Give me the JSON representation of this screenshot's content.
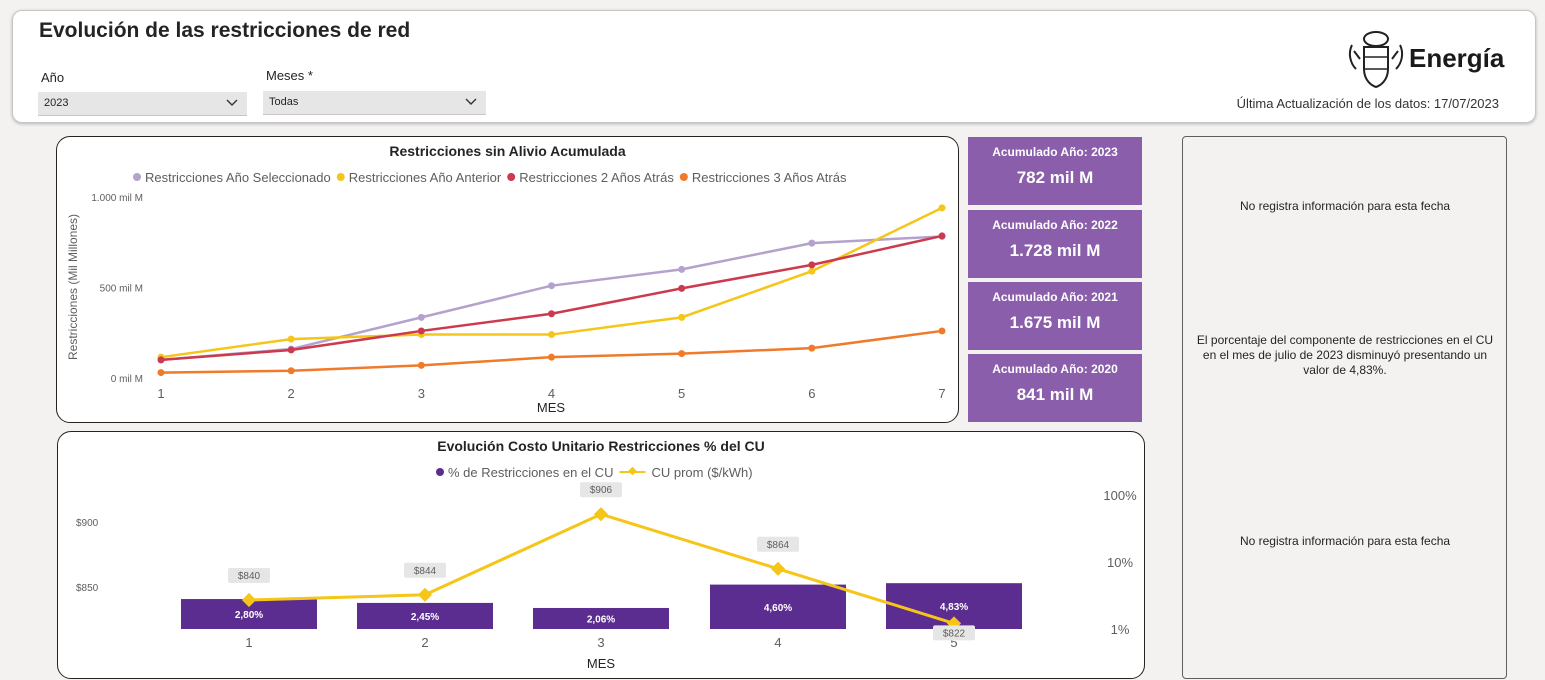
{
  "header": {
    "title": "Evolución de las restricciones de red",
    "year_label": "Año",
    "year_value": "2023",
    "months_label": "Meses *",
    "months_value": "Todas",
    "brand": "Energía",
    "last_update": "Última Actualización de los datos: 17/07/2023"
  },
  "kpis": [
    {
      "label": "Acumulado Año: 2023",
      "value": "782 mil M"
    },
    {
      "label": "Acumulado Año: 2022",
      "value": "1.728 mil M"
    },
    {
      "label": "Acumulado Año: 2021",
      "value": "1.675 mil M"
    },
    {
      "label": "Acumulado Año: 2020",
      "value": "841 mil M"
    }
  ],
  "side_panel": {
    "note_top": "No registra información para esta fecha",
    "note_middle": "El porcentaje del componente de restricciones en el CU en el mes de julio de 2023 disminuyó presentando un valor de 4,83%.",
    "note_bottom": "No registra información para esta fecha"
  },
  "colors": {
    "selected": "#b4a2cd",
    "previous": "#f5c518",
    "two_years": "#cc3a4e",
    "three_years": "#f07a2a",
    "bars": "#5c2d91",
    "cu_line": "#f5c518",
    "kpi_bg": "#8a5eaa"
  },
  "chart_data": [
    {
      "type": "line",
      "title": "Restricciones sin Alivio Acumulada",
      "xlabel": "MES",
      "ylabel": "Restricciones (Mil Millones)",
      "x": [
        1,
        2,
        3,
        4,
        5,
        6,
        7
      ],
      "ylim": [
        0,
        1000
      ],
      "yticks": [
        "0 mil M",
        "500 mil M",
        "1.000 mil M"
      ],
      "legend_position": "top",
      "series": [
        {
          "name": "Restricciones Año Seleccionado",
          "color": "#b4a2cd",
          "values": [
            100,
            160,
            335,
            510,
            600,
            745,
            782
          ]
        },
        {
          "name": "Restricciones Año Anterior",
          "color": "#f5c518",
          "values": [
            115,
            215,
            240,
            240,
            335,
            590,
            940
          ]
        },
        {
          "name": "Restricciones 2 Años Atrás",
          "color": "#cc3a4e",
          "values": [
            100,
            155,
            260,
            355,
            495,
            625,
            785
          ]
        },
        {
          "name": "Restricciones 3 Años Atrás",
          "color": "#f07a2a",
          "values": [
            30,
            40,
            70,
            115,
            135,
            165,
            260
          ]
        }
      ]
    },
    {
      "type": "bar",
      "title": "Evolución Costo Unitario Restricciones % del CU",
      "xlabel": "MES",
      "categories": [
        "1",
        "2",
        "3",
        "4",
        "5"
      ],
      "legend_position": "top",
      "left_axis": {
        "ticks": [
          "$850",
          "$900"
        ]
      },
      "right_axis": {
        "scale": "log",
        "ticks": [
          "1%",
          "10%",
          "100%"
        ]
      },
      "series": [
        {
          "name": "% de Restricciones en el CU",
          "color": "#5c2d91",
          "values": [
            2.8,
            2.45,
            2.06,
            4.6,
            4.83
          ],
          "labels": [
            "2,80%",
            "2,45%",
            "2,06%",
            "4,60%",
            "4,83%"
          ]
        },
        {
          "name": "CU prom ($/kWh)",
          "color": "#f5c518",
          "values": [
            840,
            844,
            906,
            864,
            822
          ],
          "labels": [
            "$840",
            "$844",
            "$906",
            "$864",
            "$822"
          ]
        }
      ]
    }
  ]
}
